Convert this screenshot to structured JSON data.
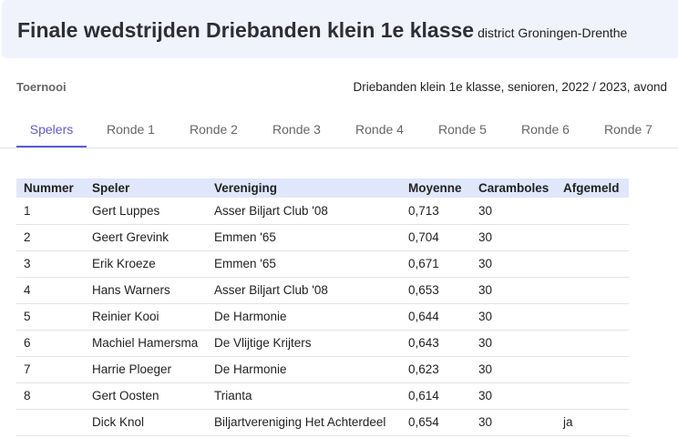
{
  "header": {
    "title": "Finale wedstrijden Driebanden klein 1e klasse",
    "subtitle": "district Groningen-Drenthe"
  },
  "info": {
    "label": "Toernooi",
    "value": "Driebanden klein 1e klasse, senioren, 2022 / 2023, avond"
  },
  "tabs": [
    {
      "label": "Spelers",
      "active": true
    },
    {
      "label": "Ronde 1"
    },
    {
      "label": "Ronde 2"
    },
    {
      "label": "Ronde 3"
    },
    {
      "label": "Ronde 4"
    },
    {
      "label": "Ronde 5"
    },
    {
      "label": "Ronde 6"
    },
    {
      "label": "Ronde 7"
    }
  ],
  "colors": {
    "accent": "#5b5bd6",
    "header_bg": "#f1f3fc",
    "table_header_bg": "#e1e7fa"
  },
  "table": {
    "columns": [
      "Nummer",
      "Speler",
      "Vereniging",
      "Moyenne",
      "Caramboles",
      "Afgemeld"
    ],
    "rows": [
      [
        "1",
        "Gert Luppes",
        "Asser Biljart Club '08",
        "0,713",
        "30",
        ""
      ],
      [
        "2",
        "Geert Grevink",
        "Emmen '65",
        "0,704",
        "30",
        ""
      ],
      [
        "3",
        "Erik Kroeze",
        "Emmen '65",
        "0,671",
        "30",
        ""
      ],
      [
        "4",
        "Hans Warners",
        "Asser Biljart Club '08",
        "0,653",
        "30",
        ""
      ],
      [
        "5",
        "Reinier Kooi",
        "De Harmonie",
        "0,644",
        "30",
        ""
      ],
      [
        "6",
        "Machiel Hamersma",
        "De Vlijtige Krijters",
        "0,643",
        "30",
        ""
      ],
      [
        "7",
        "Harrie Ploeger",
        "De Harmonie",
        "0,623",
        "30",
        ""
      ],
      [
        "8",
        "Gert Oosten",
        "Trianta",
        "0,614",
        "30",
        ""
      ],
      [
        "",
        "Dick Knol",
        "Biljartvereniging Het Achterdeel",
        "0,654",
        "30",
        "ja"
      ]
    ]
  }
}
